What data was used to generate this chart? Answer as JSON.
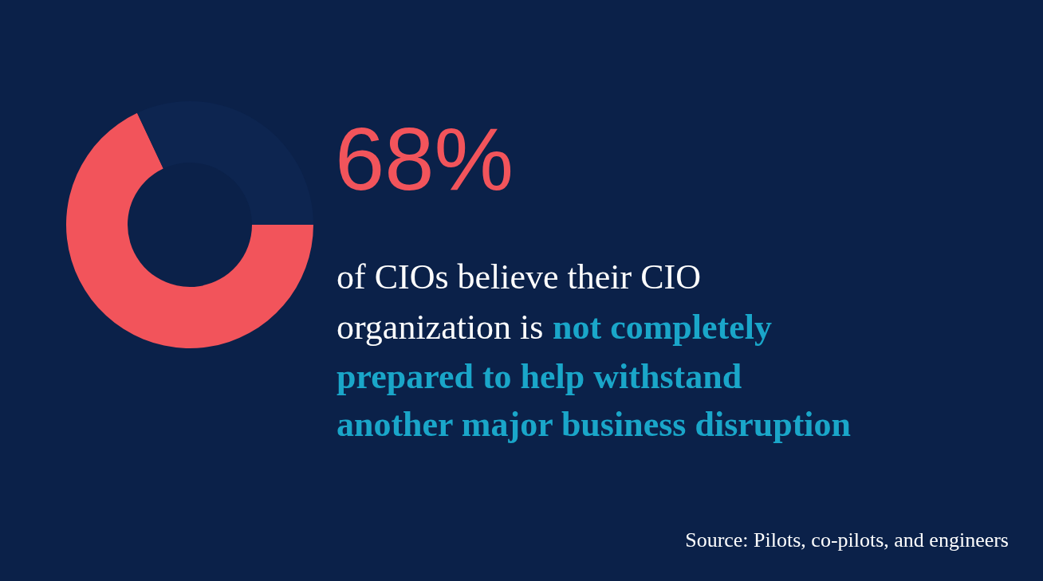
{
  "chart_data": {
    "type": "donut",
    "categories": [
      null,
      null
    ],
    "values": [
      68,
      32
    ],
    "colors": [
      "#f2545b",
      "#0d2550"
    ],
    "value_labels": [
      "68%",
      null
    ],
    "subtitle": "of CIOs believe their CIO organization is",
    "annotations": [
      "not completely prepared to help withstand another major business disruption",
      "Source: Pilots, co-pilots, and engineers"
    ]
  }
}
